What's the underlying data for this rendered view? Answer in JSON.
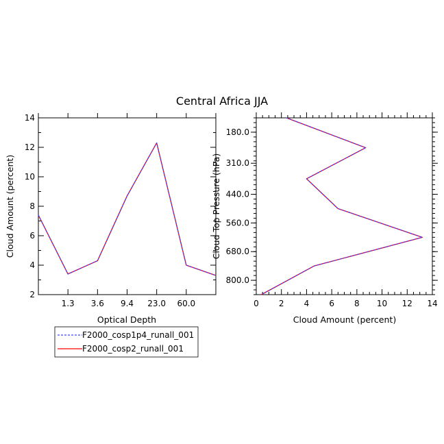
{
  "title": "Central Africa JJA",
  "chart_data": [
    {
      "type": "line",
      "xlabel": "Optical Depth",
      "ylabel": "Cloud Amount (percent)",
      "ylim": [
        2,
        14
      ],
      "yticks": [
        "2",
        "4",
        "6",
        "8",
        "10",
        "12",
        "14"
      ],
      "xtick_labels": [
        "1.3",
        "3.6",
        "9.4",
        "23.0",
        "60.0"
      ],
      "series": [
        {
          "name": "F2000_cosp1p4_runall_001",
          "color": "#4040ff",
          "dash": true,
          "x": [
            0.3,
            1.3,
            3.6,
            9.4,
            23.0,
            60.0,
            379.0
          ],
          "values": [
            7.4,
            3.4,
            4.3,
            8.7,
            12.3,
            4.0,
            3.3
          ]
        },
        {
          "name": "F2000_cosp2_runall_001",
          "color": "#ff0000",
          "dash": false,
          "x": [
            0.3,
            1.3,
            3.6,
            9.4,
            23.0,
            60.0,
            379.0
          ],
          "values": [
            7.4,
            3.4,
            4.3,
            8.7,
            12.3,
            4.0,
            3.3
          ]
        }
      ]
    },
    {
      "type": "line",
      "xlabel": "Cloud Amount (percent)",
      "ylabel": "Cloud Top Pressure (hPa)",
      "xlim": [
        0,
        14
      ],
      "xticks": [
        "0",
        "2",
        "4",
        "6",
        "8",
        "10",
        "12",
        "14"
      ],
      "ylim": [
        860,
        120
      ],
      "ytick_labels": [
        "180.0",
        "310.0",
        "440.0",
        "560.0",
        "680.0",
        "800.0"
      ],
      "series": [
        {
          "name": "F2000_cosp1p4_runall_001",
          "color": "#4040ff",
          "dash": true,
          "pressure": [
            120,
            245,
            375,
            500,
            620,
            740,
            860
          ],
          "values": [
            2.4,
            8.7,
            4.0,
            6.5,
            13.2,
            4.6,
            0.4
          ]
        },
        {
          "name": "F2000_cosp2_runall_001",
          "color": "#ff0000",
          "dash": false,
          "pressure": [
            120,
            245,
            375,
            500,
            620,
            740,
            860
          ],
          "values": [
            2.4,
            8.7,
            4.0,
            6.5,
            13.2,
            4.6,
            0.4
          ]
        }
      ]
    }
  ],
  "legend": {
    "entries": [
      {
        "label": "F2000_cosp1p4_runall_001",
        "color": "#4040ff",
        "dash": true
      },
      {
        "label": "F2000_cosp2_runall_001",
        "color": "#ff0000",
        "dash": false
      }
    ]
  }
}
